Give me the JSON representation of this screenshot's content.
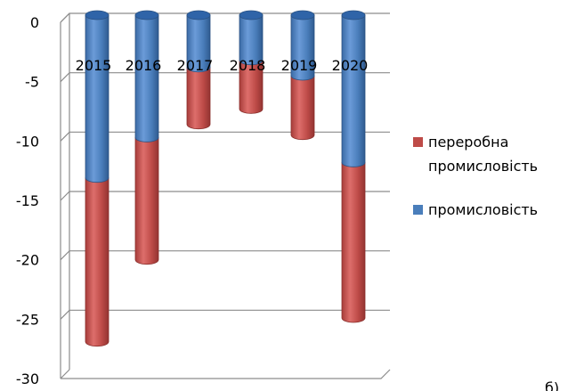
{
  "chart_data": {
    "type": "bar",
    "stacked": true,
    "style": "3d-cylinder",
    "categories": [
      "2015",
      "2016",
      "2017",
      "2018",
      "2019",
      "2020"
    ],
    "series": [
      {
        "name": "промисловість",
        "values": [
          -13.7,
          -10.3,
          -4.4,
          -3.8,
          -5.1,
          -12.4
        ],
        "color": "#4a7ebb"
      },
      {
        "name": "переробна промисловість",
        "values": [
          -13.8,
          -10.3,
          -4.8,
          -4.1,
          -5.0,
          -13.1
        ],
        "color": "#be4b48"
      }
    ],
    "ylim": [
      -30,
      0
    ],
    "yticks": [
      "0",
      "-5",
      "-10",
      "-15",
      "-20",
      "-25",
      "-30"
    ],
    "grid": true,
    "legend_position": "right",
    "legend_order": [
      "переробна промисловість",
      "промисловість"
    ],
    "legend_lines": [
      [
        "переробна",
        "промисловість"
      ],
      [
        "промисловість"
      ]
    ]
  },
  "corner_label": "б)"
}
